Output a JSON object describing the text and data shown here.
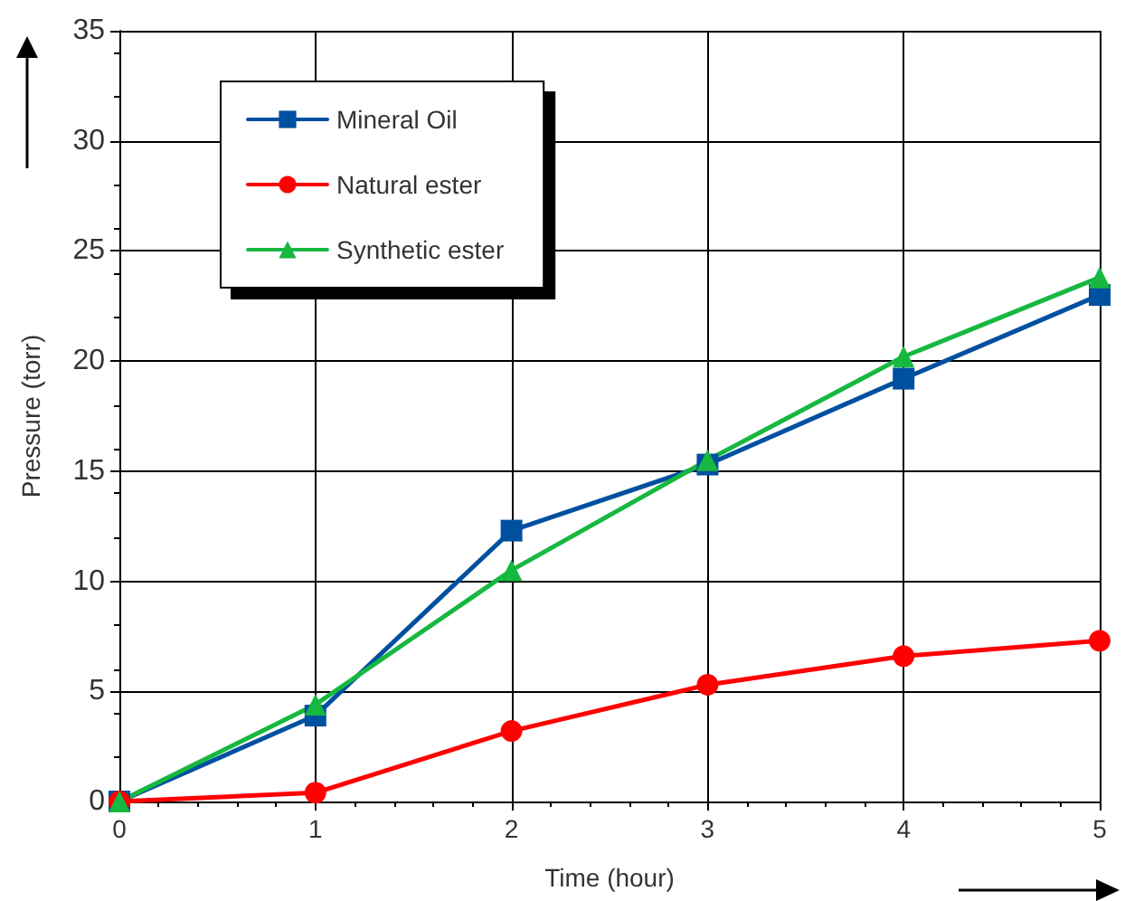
{
  "chart_data": {
    "type": "line",
    "xlabel": "Time (hour)",
    "ylabel": "Pressure (torr)",
    "x": [
      0,
      1,
      2,
      3,
      4,
      5
    ],
    "series": [
      {
        "name": "Mineral Oil",
        "color": "#0050a0",
        "marker": "square",
        "values": [
          0,
          3.9,
          12.3,
          15.3,
          19.2,
          23.0
        ]
      },
      {
        "name": "Natural ester",
        "color": "#ff0000",
        "marker": "circle",
        "values": [
          0,
          0.4,
          3.2,
          5.3,
          6.6,
          7.3
        ]
      },
      {
        "name": "Synthetic ester",
        "color": "#16b840",
        "marker": "triangle",
        "values": [
          0,
          4.4,
          10.5,
          15.5,
          20.2,
          23.8
        ]
      }
    ],
    "xlim": [
      0,
      5
    ],
    "xticks": [
      0,
      1,
      2,
      3,
      4,
      5
    ],
    "ylim": [
      0,
      35
    ],
    "yticks": [
      0,
      5,
      10,
      15,
      20,
      25,
      30,
      35
    ],
    "grid": true,
    "legend": "top left",
    "line_style": "solid"
  }
}
